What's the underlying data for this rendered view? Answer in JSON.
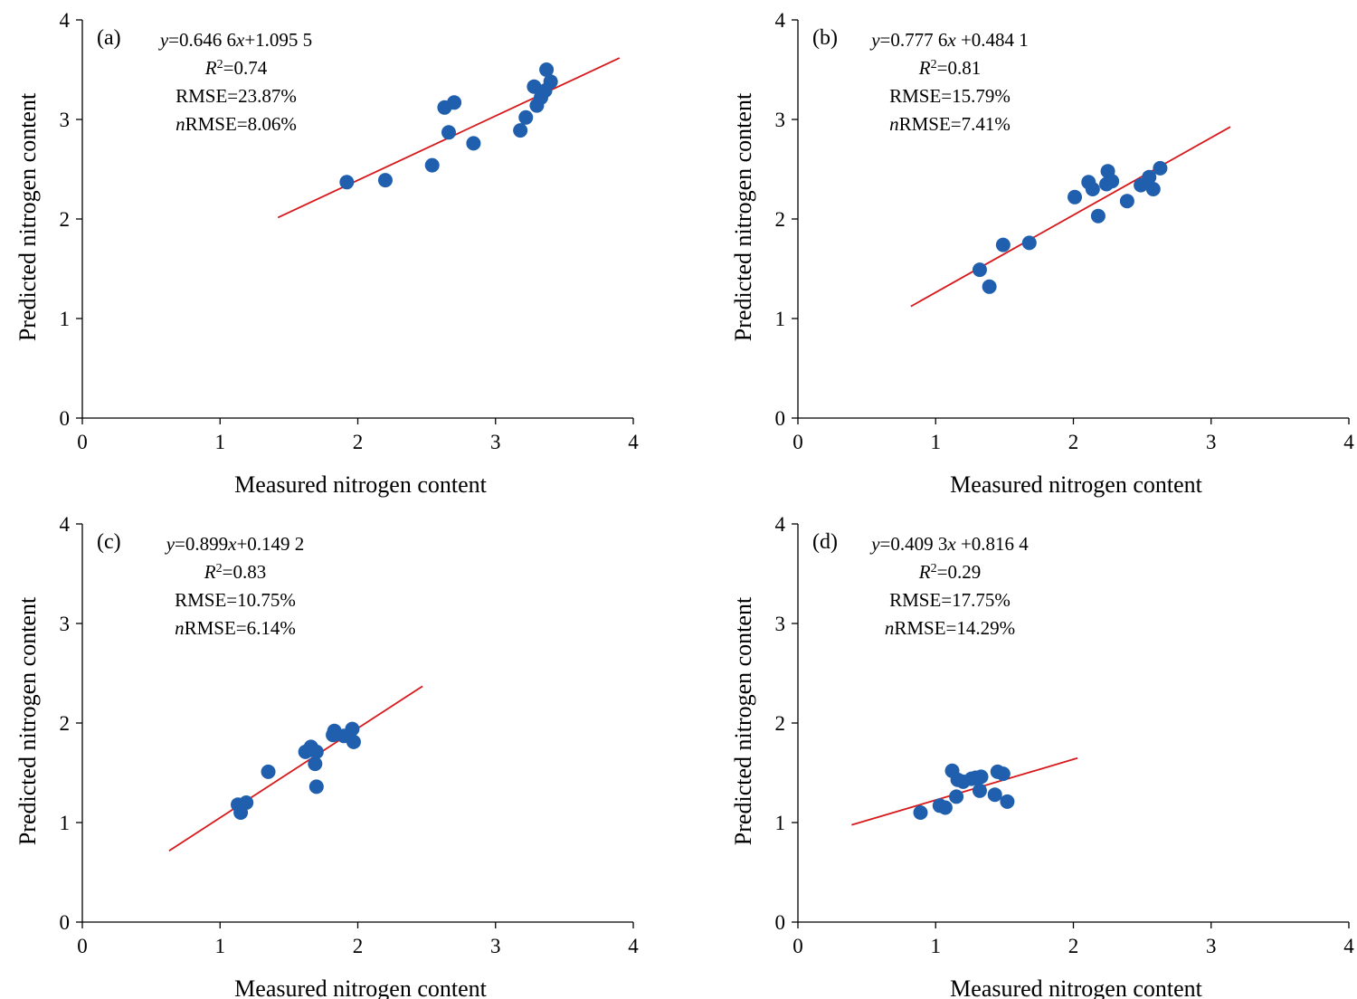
{
  "chart_data": [
    {
      "type": "scatter",
      "panel_label": "(a)",
      "xlabel": "Measured nitrogen content",
      "ylabel": "Predicted nitrogen content",
      "xlim": [
        0,
        4
      ],
      "ylim": [
        0,
        4
      ],
      "xticks": [
        "0",
        "1",
        "2",
        "3",
        "4"
      ],
      "yticks": [
        "0",
        "1",
        "2",
        "3",
        "4"
      ],
      "annotation": {
        "equation": "y=0.646 6x+1.095 5",
        "r2": "R2=0.74",
        "rmse": "RMSE=23.87%",
        "nrmse": "nRMSE=8.06%"
      },
      "fit_line": {
        "slope": 0.6466,
        "intercept": 1.0955,
        "x_range": [
          1.42,
          3.9
        ]
      },
      "x": [
        1.92,
        2.2,
        2.54,
        2.63,
        2.66,
        2.7,
        2.84,
        3.18,
        3.22,
        3.28,
        3.3,
        3.33,
        3.36,
        3.37,
        3.4
      ],
      "y": [
        2.37,
        2.39,
        2.54,
        3.12,
        2.87,
        3.17,
        2.76,
        2.89,
        3.02,
        3.33,
        3.14,
        3.22,
        3.29,
        3.5,
        3.38
      ]
    },
    {
      "type": "scatter",
      "panel_label": "(b)",
      "xlabel": "Measured nitrogen content",
      "ylabel": "Predicted nitrogen content",
      "xlim": [
        0,
        4
      ],
      "ylim": [
        0,
        4
      ],
      "xticks": [
        "0",
        "1",
        "2",
        "3",
        "4"
      ],
      "yticks": [
        "0",
        "1",
        "2",
        "3",
        "4"
      ],
      "annotation": {
        "equation": "y=0.777 6x +0.484 1",
        "r2": "R2=0.81",
        "rmse": "RMSE=15.79%",
        "nrmse": "nRMSE=7.41%"
      },
      "fit_line": {
        "slope": 0.7776,
        "intercept": 0.4841,
        "x_range": [
          0.82,
          3.14
        ]
      },
      "x": [
        1.32,
        1.39,
        1.49,
        1.68,
        2.01,
        2.11,
        2.14,
        2.18,
        2.24,
        2.25,
        2.28,
        2.39,
        2.49,
        2.55,
        2.58,
        2.63
      ],
      "y": [
        1.49,
        1.32,
        1.74,
        1.76,
        2.22,
        2.37,
        2.3,
        2.03,
        2.35,
        2.48,
        2.38,
        2.18,
        2.34,
        2.42,
        2.3,
        2.51
      ]
    },
    {
      "type": "scatter",
      "panel_label": "(c)",
      "xlabel": "Measured nitrogen content",
      "ylabel": "Predicted nitrogen content",
      "xlim": [
        0,
        4
      ],
      "ylim": [
        0,
        4
      ],
      "xticks": [
        "0",
        "1",
        "2",
        "3",
        "4"
      ],
      "yticks": [
        "0",
        "1",
        "2",
        "3",
        "4"
      ],
      "annotation": {
        "equation": "y=0.899x+0.149 2",
        "r2": "R2=0.83",
        "rmse": "RMSE=10.75%",
        "nrmse": "nRMSE=6.14%"
      },
      "fit_line": {
        "slope": 0.899,
        "intercept": 0.1492,
        "x_range": [
          0.63,
          2.47
        ]
      },
      "x": [
        1.13,
        1.15,
        1.19,
        1.35,
        1.62,
        1.65,
        1.66,
        1.69,
        1.7,
        1.7,
        1.82,
        1.83,
        1.9,
        1.96,
        1.97
      ],
      "y": [
        1.18,
        1.1,
        1.2,
        1.51,
        1.71,
        1.73,
        1.76,
        1.59,
        1.36,
        1.71,
        1.88,
        1.92,
        1.87,
        1.94,
        1.81
      ]
    },
    {
      "type": "scatter",
      "panel_label": "(d)",
      "xlabel": "Measured nitrogen content",
      "ylabel": "Predicted nitrogen content",
      "xlim": [
        0,
        4
      ],
      "ylim": [
        0,
        4
      ],
      "xticks": [
        "0",
        "1",
        "2",
        "3",
        "4"
      ],
      "yticks": [
        "0",
        "1",
        "2",
        "3",
        "4"
      ],
      "annotation": {
        "equation": "y=0.409 3x +0.816 4",
        "r2": "R2=0.29",
        "rmse": "RMSE=17.75%",
        "nrmse": "nRMSE=14.29%"
      },
      "fit_line": {
        "slope": 0.4093,
        "intercept": 0.8164,
        "x_range": [
          0.39,
          2.03
        ]
      },
      "x": [
        0.89,
        1.03,
        1.07,
        1.12,
        1.15,
        1.16,
        1.2,
        1.26,
        1.29,
        1.32,
        1.33,
        1.43,
        1.45,
        1.49,
        1.52
      ],
      "y": [
        1.1,
        1.17,
        1.15,
        1.52,
        1.26,
        1.43,
        1.41,
        1.44,
        1.45,
        1.32,
        1.46,
        1.28,
        1.51,
        1.49,
        1.21
      ]
    }
  ],
  "colors": {
    "point": "#1f5fae",
    "fit_line": "#d7191c",
    "axes": "#000000"
  }
}
